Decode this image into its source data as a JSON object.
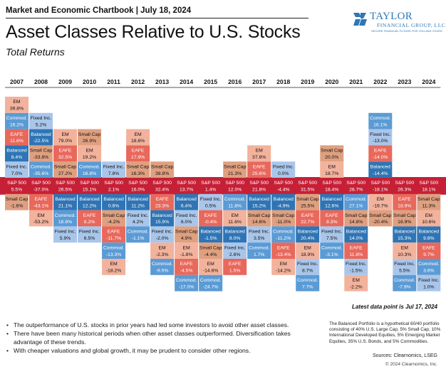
{
  "header": {
    "kicker": "Market and Economic Chartbook | July 18, 2024",
    "title": "Asset Classes Relative to U.S. Stocks",
    "subtitle": "Total Returns"
  },
  "logo": {
    "name": "TAYLOR",
    "sub": "FINANCIAL GROUP, LLC",
    "tagline": "SECURE FINANCIAL FUTURE FOR YOU AND YOURS"
  },
  "colors": {
    "sp500": "#c62036",
    "Commod.": "#5b9bd5",
    "Fixed Inc.": "#a9c6ea",
    "EM": "#f2b29c",
    "EAFE": "#e8685c",
    "Balanced": "#2f75b5",
    "Small Cap": "#dfa080",
    "label_dark": "#ffffff",
    "label_light": "#111111"
  },
  "chart_data": {
    "type": "table",
    "years": [
      "2007",
      "2008",
      "2009",
      "2010",
      "2011",
      "2012",
      "2013",
      "2014",
      "2015",
      "2016",
      "2017",
      "2018",
      "2019",
      "2020",
      "2021",
      "2022",
      "2023",
      "2024"
    ],
    "benchmark": {
      "name": "S&P 500",
      "values": [
        "5.5%",
        "-37.0%",
        "26.5%",
        "15.1%",
        "2.1%",
        "16.0%",
        "32.4%",
        "13.7%",
        "1.4%",
        "12.0%",
        "21.8%",
        "-4.4%",
        "31.5%",
        "18.4%",
        "28.7%",
        "-18.1%",
        "26.3%",
        "18.1%"
      ]
    },
    "above": [
      [
        [
          "Fixed Inc.",
          "7.0%"
        ],
        [
          "Balanced",
          "8.4%"
        ],
        [
          "EAFE",
          "11.6%"
        ],
        [
          "Commod.",
          "16.2%"
        ],
        [
          "EM",
          "39.8%"
        ]
      ],
      [
        [
          "Commod.",
          "-35.6%"
        ],
        [
          "Small Cap",
          "-33.8%"
        ],
        [
          "Balanced",
          "-22.5%"
        ],
        [
          "Fixed Inc.",
          "5.2%"
        ]
      ],
      [
        [
          "Small Cap",
          "27.2%"
        ],
        [
          "EAFE",
          "32.5%"
        ],
        [
          "EM",
          "79.0%"
        ]
      ],
      [
        [
          "Commod.",
          "16.8%"
        ],
        [
          "EM",
          "19.2%"
        ],
        [
          "Small Cap",
          "26.9%"
        ]
      ],
      [
        [
          "Fixed Inc.",
          "7.8%"
        ]
      ],
      [
        [
          "Small Cap",
          "16.3%"
        ],
        [
          "EAFE",
          "17.9%"
        ],
        [
          "EM",
          "18.6%"
        ]
      ],
      [
        [
          "Small Cap",
          "38.8%"
        ]
      ],
      [],
      [],
      [
        [
          "Small Cap",
          "21.3%"
        ]
      ],
      [
        [
          "EAFE",
          "25.6%"
        ],
        [
          "EM",
          "37.8%"
        ]
      ],
      [
        [
          "Fixed Inc.",
          "0.0%"
        ]
      ],
      [],
      [
        [
          "EM",
          "18.7%"
        ],
        [
          "Small Cap",
          "20.0%"
        ]
      ],
      [],
      [
        [
          "Balanced",
          "-14.4%"
        ],
        [
          "EAFE",
          "-14.0%"
        ],
        [
          "Fixed Inc.",
          "-13.0%"
        ],
        [
          "Commod.",
          "16.1%"
        ]
      ],
      [],
      []
    ],
    "below": [
      [
        [
          "Small Cap",
          "-1.6%"
        ]
      ],
      [
        [
          "EAFE",
          "-43.1%"
        ],
        [
          "EM",
          "-53.2%"
        ]
      ],
      [
        [
          "Balanced",
          "21.1%"
        ],
        [
          "Commod.",
          "18.9%"
        ],
        [
          "Fixed Inc.",
          "5.9%"
        ]
      ],
      [
        [
          "Balanced",
          "12.2%"
        ],
        [
          "EAFE",
          "8.2%"
        ],
        [
          "Fixed Inc.",
          "6.5%"
        ]
      ],
      [
        [
          "Balanced",
          "0.6%"
        ],
        [
          "Small Cap",
          "-4.2%"
        ],
        [
          "EAFE",
          "-11.7%"
        ],
        [
          "Commod.",
          "-13.3%"
        ],
        [
          "EM",
          "-18.2%"
        ]
      ],
      [
        [
          "Balanced",
          "11.2%"
        ],
        [
          "Fixed Inc.",
          "4.2%"
        ],
        [
          "Commod.",
          "-1.1%"
        ]
      ],
      [
        [
          "EAFE",
          "23.3%"
        ],
        [
          "Balanced",
          "15.9%"
        ],
        [
          "Fixed Inc.",
          "-2.0%"
        ],
        [
          "EM",
          "-2.3%"
        ],
        [
          "Commod.",
          "-9.5%"
        ]
      ],
      [
        [
          "Balanced",
          "6.4%"
        ],
        [
          "Fixed Inc.",
          "6.0%"
        ],
        [
          "Small Cap",
          "4.9%"
        ],
        [
          "EM",
          "-1.8%"
        ],
        [
          "EAFE",
          "-4.5%"
        ],
        [
          "Commod.",
          "-17.0%"
        ]
      ],
      [
        [
          "Fixed Inc.",
          "0.5%"
        ],
        [
          "EAFE",
          "-0.4%"
        ],
        [
          "Balanced",
          "-1.5%"
        ],
        [
          "Small Cap",
          "-4.4%"
        ],
        [
          "EM",
          "-14.6%"
        ],
        [
          "Commod.",
          "-24.7%"
        ]
      ],
      [
        [
          "Commod.",
          "11.8%"
        ],
        [
          "EM",
          "11.6%"
        ],
        [
          "Balanced",
          "8.0%"
        ],
        [
          "Fixed Inc.",
          "2.6%"
        ],
        [
          "EAFE",
          "1.5%"
        ]
      ],
      [
        [
          "Balanced",
          "15.2%"
        ],
        [
          "Small Cap",
          "14.6%"
        ],
        [
          "Fixed Inc.",
          "3.5%"
        ],
        [
          "Commod.",
          "1.7%"
        ]
      ],
      [
        [
          "Balanced",
          "-4.9%"
        ],
        [
          "Small Cap",
          "-11.0%"
        ],
        [
          "Commod.",
          "-11.2%"
        ],
        [
          "EAFE",
          "-13.4%"
        ],
        [
          "EM",
          "-14.2%"
        ]
      ],
      [
        [
          "Small Cap",
          "25.5%"
        ],
        [
          "EAFE",
          "22.7%"
        ],
        [
          "Balanced",
          "20.4%"
        ],
        [
          "EM",
          "18.9%"
        ],
        [
          "Fixed Inc.",
          "8.7%"
        ],
        [
          "Commod.",
          "7.7%"
        ]
      ],
      [
        [
          "Balanced",
          "12.6%"
        ],
        [
          "EAFE",
          "8.3%"
        ],
        [
          "Fixed Inc.",
          "7.5%"
        ],
        [
          "Commod.",
          "-3.1%"
        ]
      ],
      [
        [
          "Commod.",
          "27.1%"
        ],
        [
          "Small Cap",
          "14.8%"
        ],
        [
          "Balanced",
          "14.0%"
        ],
        [
          "EAFE",
          "11.8%"
        ],
        [
          "Fixed Inc.",
          "-1.5%"
        ],
        [
          "EM",
          "-2.2%"
        ]
      ],
      [
        [
          "EM",
          "-19.7%"
        ],
        [
          "Small Cap",
          "-20.4%"
        ]
      ],
      [
        [
          "EAFE",
          "18.9%"
        ],
        [
          "Small Cap",
          "16.9%"
        ],
        [
          "Balanced",
          "15.3%"
        ],
        [
          "EM",
          "10.3%"
        ],
        [
          "Fixed Inc.",
          "5.5%"
        ],
        [
          "Commod.",
          "-7.9%"
        ]
      ],
      [
        [
          "Small Cap",
          "11.3%"
        ],
        [
          "EM",
          "10.6%"
        ],
        [
          "Balanced",
          "9.8%"
        ],
        [
          "EAFE",
          "9.7%"
        ],
        [
          "Commod.",
          "3.6%"
        ],
        [
          "Fixed Inc.",
          "1.0%"
        ]
      ]
    ]
  },
  "datapoint_note": "Latest data point is Jul 17, 2024",
  "bullets": [
    "The outperformance of U.S. stocks in prior years had led some investors to avoid other asset classes.",
    "There have been many historical periods when other asset classes outperformed. Diversification takes advantage of these trends.",
    "With cheaper valuations and global growth, it may be prudent to consider other regions."
  ],
  "balanced_note": "The Balanced Portfolio is a hypothetical 60/40 portfolio consisting of 40% U.S. Large Cap, 5% Small Cap, 10% International Developed Equities, 5% Emerging Market Equities, 35% U.S. Bonds, and 5% Commodities.",
  "sources": "Sources: Clearnomics, LSEG",
  "copyright": "© 2024 Clearnomics, Inc."
}
